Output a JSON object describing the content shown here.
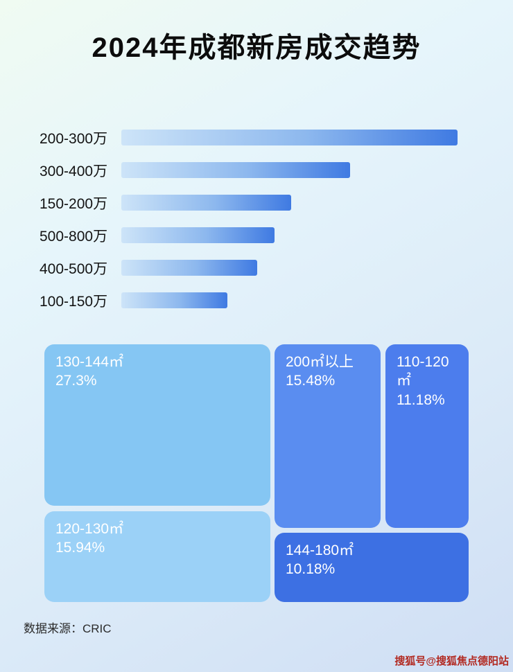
{
  "page": {
    "title": "2024年成都新房成交趋势",
    "source_label": "数据来源：CRIC",
    "watermark": "搜狐号@搜狐焦点德阳站"
  },
  "colors": {
    "bar_gradient_start": "#cde4f8",
    "bar_gradient_end": "#3f7ae2",
    "background_top": "#f0fbf2",
    "background_bottom": "#cfdef4",
    "watermark_red": "#b22a22"
  },
  "chart_data": [
    {
      "type": "bar",
      "orientation": "horizontal",
      "title": "2024年成都新房成交趋势",
      "categories": [
        "200-300万",
        "300-400万",
        "150-200万",
        "500-800万",
        "400-500万",
        "100-150万"
      ],
      "values": [
        100,
        68,
        50.5,
        45.5,
        40.5,
        31.5
      ],
      "value_basis": "relative bar length as % of longest bar; no numeric axis labels shown",
      "legend": "none",
      "grid": "off"
    },
    {
      "type": "treemap",
      "items": [
        {
          "label": "130-144㎡",
          "display": "27.3%",
          "value": 27.3,
          "color": "#85c6f3"
        },
        {
          "label": "200㎡以上",
          "display": "15.48%",
          "value": 15.48,
          "color": "#5a8df0"
        },
        {
          "label": "110-120㎡",
          "display": "11.18%",
          "value": 11.18,
          "color": "#4c7ded"
        },
        {
          "label": "120-130㎡",
          "display": "15.94%",
          "value": 15.94,
          "color": "#9bd1f7"
        },
        {
          "label": "144-180㎡",
          "display": "10.18%",
          "value": 10.18,
          "color": "#3d70e3"
        }
      ]
    }
  ]
}
